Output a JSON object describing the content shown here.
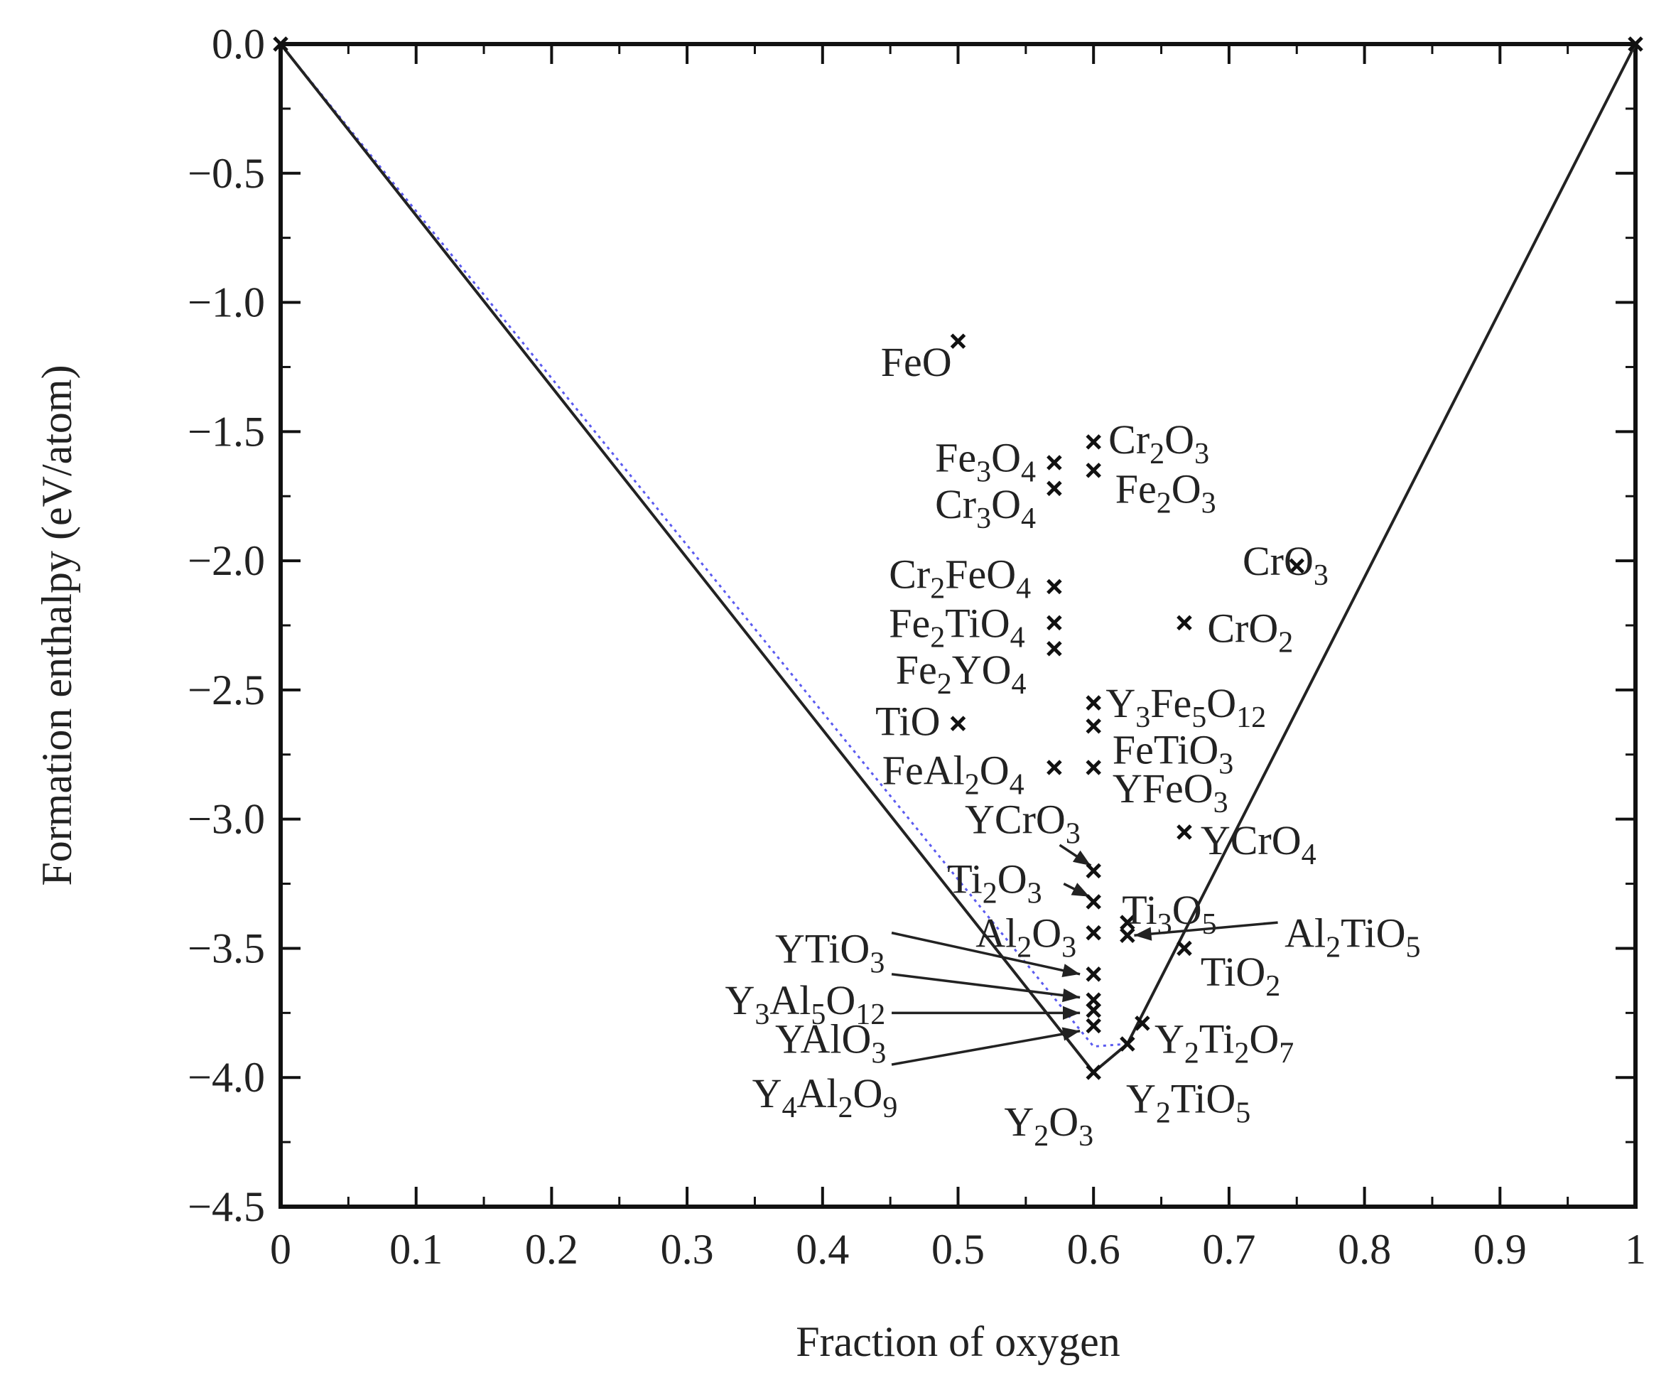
{
  "chart_data": {
    "type": "scatter",
    "title": "",
    "xlabel": "Fraction of oxygen",
    "ylabel": "Formation enthalpy (eV/atom)",
    "xlim": [
      0,
      1
    ],
    "ylim": [
      -4.5,
      0.0
    ],
    "x_ticks": [
      "0",
      "0.1",
      "0.2",
      "0.3",
      "0.4",
      "0.5",
      "0.6",
      "0.7",
      "0.8",
      "0.9",
      "1"
    ],
    "y_ticks": [
      "0.0",
      "−0.5",
      "−1.0",
      "−1.5",
      "−2.0",
      "−2.5",
      "−3.0",
      "−3.5",
      "−4.0",
      "−4.5"
    ],
    "grid": false,
    "legend": "none",
    "hull_color": "#222222",
    "dotted_line_color": "#5b5bf0",
    "convex_hull": [
      {
        "x": 0.0,
        "y": 0.0
      },
      {
        "x": 0.6,
        "y": -3.98
      },
      {
        "x": 0.625,
        "y": -3.87
      },
      {
        "x": 1.0,
        "y": 0.0
      }
    ],
    "dotted_hull": [
      {
        "x": 0.0,
        "y": 0.0
      },
      {
        "x": 0.6,
        "y": -3.88
      },
      {
        "x": 0.625,
        "y": -3.87
      }
    ],
    "points": [
      {
        "label": "FeO",
        "x": 0.5,
        "y": -1.15
      },
      {
        "label": "Fe3O4",
        "x": 0.571,
        "y": -1.62
      },
      {
        "label": "Cr3O4",
        "x": 0.571,
        "y": -1.72
      },
      {
        "label": "Cr2O3",
        "x": 0.6,
        "y": -1.54
      },
      {
        "label": "Fe2O3",
        "x": 0.6,
        "y": -1.65
      },
      {
        "label": "CrO3",
        "x": 0.75,
        "y": -2.02
      },
      {
        "label": "Cr2FeO4",
        "x": 0.571,
        "y": -2.1
      },
      {
        "label": "Fe2TiO4",
        "x": 0.571,
        "y": -2.24
      },
      {
        "label": "Fe2YO4",
        "x": 0.571,
        "y": -2.34
      },
      {
        "label": "CrO2",
        "x": 0.667,
        "y": -2.24
      },
      {
        "label": "TiO",
        "x": 0.5,
        "y": -2.63
      },
      {
        "label": "Y3Fe5O12",
        "x": 0.6,
        "y": -2.55
      },
      {
        "label": "FeTiO3",
        "x": 0.6,
        "y": -2.64
      },
      {
        "label": "FeAl2O4",
        "x": 0.571,
        "y": -2.8
      },
      {
        "label": "YFeO3",
        "x": 0.6,
        "y": -2.8
      },
      {
        "label": "YCrO4",
        "x": 0.667,
        "y": -3.05
      },
      {
        "label": "YCrO3",
        "x": 0.6,
        "y": -3.2
      },
      {
        "label": "Ti2O3",
        "x": 0.6,
        "y": -3.32
      },
      {
        "label": "Al2O3",
        "x": 0.6,
        "y": -3.44
      },
      {
        "label": "Ti3O5",
        "x": 0.625,
        "y": -3.4
      },
      {
        "label": "Al2TiO5",
        "x": 0.625,
        "y": -3.45
      },
      {
        "label": "TiO2",
        "x": 0.667,
        "y": -3.5
      },
      {
        "label": "YTiO3",
        "x": 0.6,
        "y": -3.6
      },
      {
        "label": "Y3Al5O12",
        "x": 0.6,
        "y": -3.7
      },
      {
        "label": "YAlO3",
        "x": 0.6,
        "y": -3.74
      },
      {
        "label": "Y4Al2O9",
        "x": 0.6,
        "y": -3.8
      },
      {
        "label": "Y2Ti2O7",
        "x": 0.636,
        "y": -3.79
      },
      {
        "label": "Y2TiO5",
        "x": 0.625,
        "y": -3.87
      },
      {
        "label": "Y2O3",
        "x": 0.6,
        "y": -3.98
      },
      {
        "label": "",
        "x": 0.0,
        "y": 0.0
      },
      {
        "label": "",
        "x": 1.0,
        "y": 0.0
      }
    ],
    "labels": [
      {
        "text": "FeO",
        "x": 0.443,
        "y": -1.23
      },
      {
        "text": "Fe3O4",
        "x": 0.483,
        "y": -1.6
      },
      {
        "text": "Cr3O4",
        "x": 0.483,
        "y": -1.78
      },
      {
        "text": "Cr2O3",
        "x": 0.611,
        "y": -1.53
      },
      {
        "text": "Fe2O3",
        "x": 0.616,
        "y": -1.72
      },
      {
        "text": "CrO3",
        "x": 0.71,
        "y": -2.0
      },
      {
        "text": "Cr2FeO4",
        "x": 0.449,
        "y": -2.05
      },
      {
        "text": "Fe2TiO4",
        "x": 0.449,
        "y": -2.24
      },
      {
        "text": "Fe2YO4",
        "x": 0.454,
        "y": -2.42
      },
      {
        "text": "CrO2",
        "x": 0.684,
        "y": -2.26
      },
      {
        "text": "TiO",
        "x": 0.439,
        "y": -2.62
      },
      {
        "text": "Y3Fe5O12",
        "x": 0.609,
        "y": -2.55
      },
      {
        "text": "FeTiO3",
        "x": 0.614,
        "y": -2.73
      },
      {
        "text": "FeAl2O4",
        "x": 0.444,
        "y": -2.81
      },
      {
        "text": "YFeO3",
        "x": 0.614,
        "y": -2.88
      },
      {
        "text": "YCrO4",
        "x": 0.679,
        "y": -3.08
      },
      {
        "text": "YCrO3",
        "x": 0.505,
        "y": -3.0
      },
      {
        "text": "Ti2O3",
        "x": 0.492,
        "y": -3.23
      },
      {
        "text": "Al2O3",
        "x": 0.513,
        "y": -3.44
      },
      {
        "text": "Ti3O5",
        "x": 0.621,
        "y": -3.35
      },
      {
        "text": "Al2TiO5",
        "x": 0.741,
        "y": -3.44
      },
      {
        "text": "TiO2",
        "x": 0.679,
        "y": -3.59
      },
      {
        "text": "YTiO3",
        "x": 0.365,
        "y": -3.5
      },
      {
        "text": "Y3Al5O12",
        "x": 0.328,
        "y": -3.7
      },
      {
        "text": "YAlO3",
        "x": 0.365,
        "y": -3.85
      },
      {
        "text": "Y4Al2O9",
        "x": 0.348,
        "y": -4.06
      },
      {
        "text": "Y2Ti2O7",
        "x": 0.645,
        "y": -3.85
      },
      {
        "text": "Y2TiO5",
        "x": 0.624,
        "y": -4.08
      },
      {
        "text": "Y2O3",
        "x": 0.534,
        "y": -4.17
      }
    ],
    "arrows": [
      {
        "from": {
          "x": 0.575,
          "y": -3.1
        },
        "to": {
          "x": 0.598,
          "y": -3.18
        }
      },
      {
        "from": {
          "x": 0.578,
          "y": -3.25
        },
        "to": {
          "x": 0.597,
          "y": -3.3
        }
      },
      {
        "from": {
          "x": 0.451,
          "y": -3.44
        },
        "to": {
          "x": 0.59,
          "y": -3.6
        }
      },
      {
        "from": {
          "x": 0.451,
          "y": -3.6
        },
        "to": {
          "x": 0.59,
          "y": -3.69
        }
      },
      {
        "from": {
          "x": 0.451,
          "y": -3.75
        },
        "to": {
          "x": 0.59,
          "y": -3.75
        }
      },
      {
        "from": {
          "x": 0.451,
          "y": -3.95
        },
        "to": {
          "x": 0.59,
          "y": -3.82
        }
      },
      {
        "from": {
          "x": 0.736,
          "y": -3.4
        },
        "to": {
          "x": 0.63,
          "y": -3.45
        }
      }
    ]
  }
}
